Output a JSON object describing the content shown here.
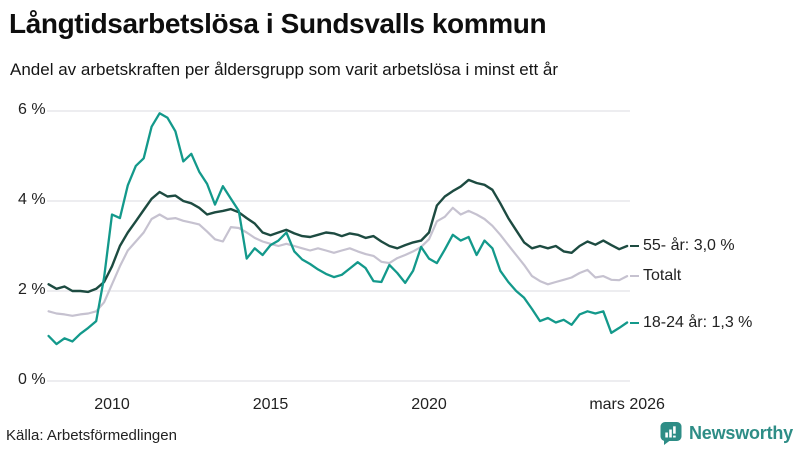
{
  "title": "Långtidsarbetslösa i Sundsvalls kommun",
  "subtitle": "Andel av arbetskraften per åldersgrupp som varit arbetslösa i minst ett år",
  "source": "Källa: Arbetsförmedlingen",
  "branding": {
    "name": "Newsworthy",
    "color": "#2e8d86"
  },
  "colors": {
    "grid": "#e2e2e8",
    "axis_text": "#222222",
    "title_text": "#0e0e0e"
  },
  "chart_data": {
    "type": "line",
    "title": "Långtidsarbetslösa i Sundsvalls kommun",
    "subtitle": "Andel av arbetskraften per åldersgrupp som varit arbetslösa i minst ett år",
    "unit": "% av arbetskraften",
    "grid": true,
    "legend_position": "right-of-line-ends",
    "x_start": 2008,
    "x_step": 0.25,
    "xlim": [
      2008,
      2026.25
    ],
    "ylim": [
      0,
      6.3
    ],
    "xticks": [
      {
        "label": "2010",
        "year": 2010
      },
      {
        "label": "2015",
        "year": 2015
      },
      {
        "label": "2020",
        "year": 2020
      },
      {
        "label": "mars 2026",
        "year": 2026.25
      }
    ],
    "yticks": [
      {
        "label": "6 %",
        "value": 6
      },
      {
        "label": "4 %",
        "value": 4
      },
      {
        "label": "2 %",
        "value": 2
      },
      {
        "label": "0 %",
        "value": 0
      }
    ],
    "series": [
      {
        "name": "Totalt",
        "end_label": "Totalt",
        "color": "#c6c2d0",
        "stroke_width": 2.2,
        "last_value": 2.33,
        "values": [
          1.55,
          1.5,
          1.48,
          1.45,
          1.48,
          1.5,
          1.55,
          1.75,
          2.15,
          2.55,
          2.9,
          3.1,
          3.3,
          3.6,
          3.7,
          3.6,
          3.62,
          3.56,
          3.52,
          3.48,
          3.32,
          3.15,
          3.1,
          3.42,
          3.4,
          3.3,
          3.18,
          3.1,
          3.05,
          3.0,
          3.05,
          3.0,
          2.95,
          2.9,
          2.95,
          2.9,
          2.85,
          2.9,
          2.95,
          2.88,
          2.82,
          2.78,
          2.65,
          2.62,
          2.73,
          2.8,
          2.88,
          2.98,
          3.15,
          3.55,
          3.65,
          3.85,
          3.7,
          3.78,
          3.7,
          3.6,
          3.45,
          3.25,
          3.02,
          2.8,
          2.58,
          2.33,
          2.22,
          2.15,
          2.2,
          2.25,
          2.3,
          2.4,
          2.47,
          2.3,
          2.33,
          2.25,
          2.24,
          2.33
        ]
      },
      {
        "name": "55- år",
        "end_label": "55- år: 3,0 %",
        "color": "#1d4b41",
        "stroke_width": 2.4,
        "last_value": 3.0,
        "values": [
          2.15,
          2.05,
          2.1,
          2.0,
          2.0,
          1.98,
          2.05,
          2.2,
          2.55,
          3.0,
          3.3,
          3.55,
          3.8,
          4.05,
          4.2,
          4.1,
          4.12,
          4.0,
          3.95,
          3.85,
          3.7,
          3.75,
          3.78,
          3.82,
          3.75,
          3.62,
          3.5,
          3.3,
          3.24,
          3.3,
          3.36,
          3.28,
          3.22,
          3.2,
          3.25,
          3.3,
          3.28,
          3.22,
          3.28,
          3.25,
          3.18,
          3.22,
          3.1,
          3.0,
          2.95,
          3.02,
          3.08,
          3.12,
          3.3,
          3.9,
          4.1,
          4.22,
          4.32,
          4.47,
          4.4,
          4.36,
          4.25,
          3.95,
          3.62,
          3.35,
          3.08,
          2.95,
          3.0,
          2.95,
          3.0,
          2.88,
          2.85,
          3.0,
          3.1,
          3.03,
          3.12,
          3.02,
          2.93,
          3.0
        ]
      },
      {
        "name": "18-24 år",
        "end_label": "18-24 år: 1,3 %",
        "color": "#13998b",
        "stroke_width": 2.3,
        "last_value": 1.3,
        "values": [
          1.0,
          0.82,
          0.95,
          0.88,
          1.05,
          1.18,
          1.33,
          2.3,
          3.7,
          3.62,
          4.35,
          4.78,
          4.95,
          5.65,
          5.95,
          5.85,
          5.55,
          4.88,
          5.05,
          4.65,
          4.38,
          3.92,
          4.33,
          4.05,
          3.78,
          2.72,
          2.95,
          2.8,
          3.02,
          3.12,
          3.3,
          2.88,
          2.7,
          2.6,
          2.48,
          2.38,
          2.31,
          2.36,
          2.5,
          2.64,
          2.51,
          2.22,
          2.2,
          2.58,
          2.4,
          2.18,
          2.45,
          2.98,
          2.72,
          2.62,
          2.92,
          3.25,
          3.12,
          3.2,
          2.8,
          3.12,
          2.95,
          2.45,
          2.2,
          2.0,
          1.85,
          1.6,
          1.33,
          1.4,
          1.3,
          1.36,
          1.25,
          1.48,
          1.55,
          1.5,
          1.55,
          1.07,
          1.18,
          1.3
        ]
      }
    ]
  }
}
